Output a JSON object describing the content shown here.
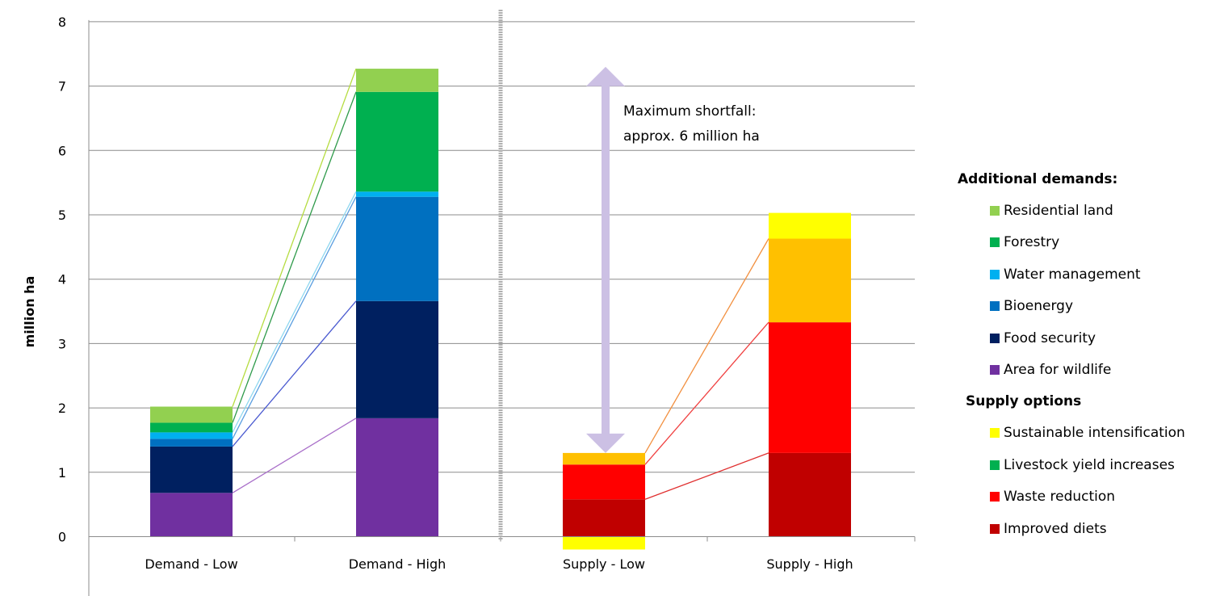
{
  "chart_data": {
    "type": "bar",
    "stacked": true,
    "categories": [
      "Demand - Low",
      "Demand - High",
      "Supply - Low",
      "Supply - High"
    ],
    "ylabel": "million ha",
    "ylim": [
      0,
      8
    ],
    "yticks": [
      "0",
      "1",
      "2",
      "3",
      "4",
      "5",
      "6",
      "7",
      "8"
    ],
    "grid": true,
    "legend_position": "right",
    "groups": [
      {
        "heading": "Additional demands:",
        "series": [
          {
            "name": "Area for wildlife",
            "color": "#7030a0",
            "values": [
              0.68,
              1.84,
              null,
              null
            ],
            "link_color": "#a96fc9"
          },
          {
            "name": "Food security",
            "color": "#002060",
            "values": [
              0.72,
              1.82,
              null,
              null
            ],
            "link_color": "#4a5ad0"
          },
          {
            "name": "Bioenergy",
            "color": "#0070c0",
            "values": [
              0.12,
              1.62,
              null,
              null
            ],
            "link_color": "#5a9ee0"
          },
          {
            "name": "Water management",
            "color": "#00b0f0",
            "values": [
              0.1,
              0.08,
              null,
              null
            ],
            "link_color": "#8fd8f0"
          },
          {
            "name": "Forestry",
            "color": "#00b050",
            "values": [
              0.15,
              1.55,
              null,
              null
            ],
            "link_color": "#2e9a4a"
          },
          {
            "name": "Residential land",
            "color": "#92d050",
            "values": [
              0.25,
              0.36,
              null,
              null
            ],
            "link_color": "#b5dc40"
          }
        ]
      },
      {
        "heading": "Supply options",
        "series": [
          {
            "name": "Improved diets",
            "color": "#c00000",
            "values": [
              null,
              null,
              0.58,
              1.3
            ],
            "link_color": "#e03030"
          },
          {
            "name": "Waste reduction",
            "color": "#ff0000",
            "values": [
              null,
              null,
              0.54,
              2.03
            ],
            "link_color": "#f04040"
          },
          {
            "name": "Livestock yield increases",
            "color": "#00b050",
            "legend_color": "#00b050",
            "bar_color": "#ffc000",
            "values": [
              null,
              null,
              0.18,
              1.3
            ],
            "link_color": "#f29040"
          },
          {
            "name": "Sustainable intensification",
            "color": "#ffff00",
            "values": [
              null,
              null,
              -0.2,
              0.4
            ]
          }
        ]
      }
    ],
    "annotation": {
      "lines": [
        "Maximum shortfall:",
        "approx. 6 million ha"
      ],
      "arrow_from": 1.3,
      "arrow_to": 7.3,
      "arrow_color": "#ccc0e4"
    },
    "divider_color": "#b0b0b0"
  }
}
